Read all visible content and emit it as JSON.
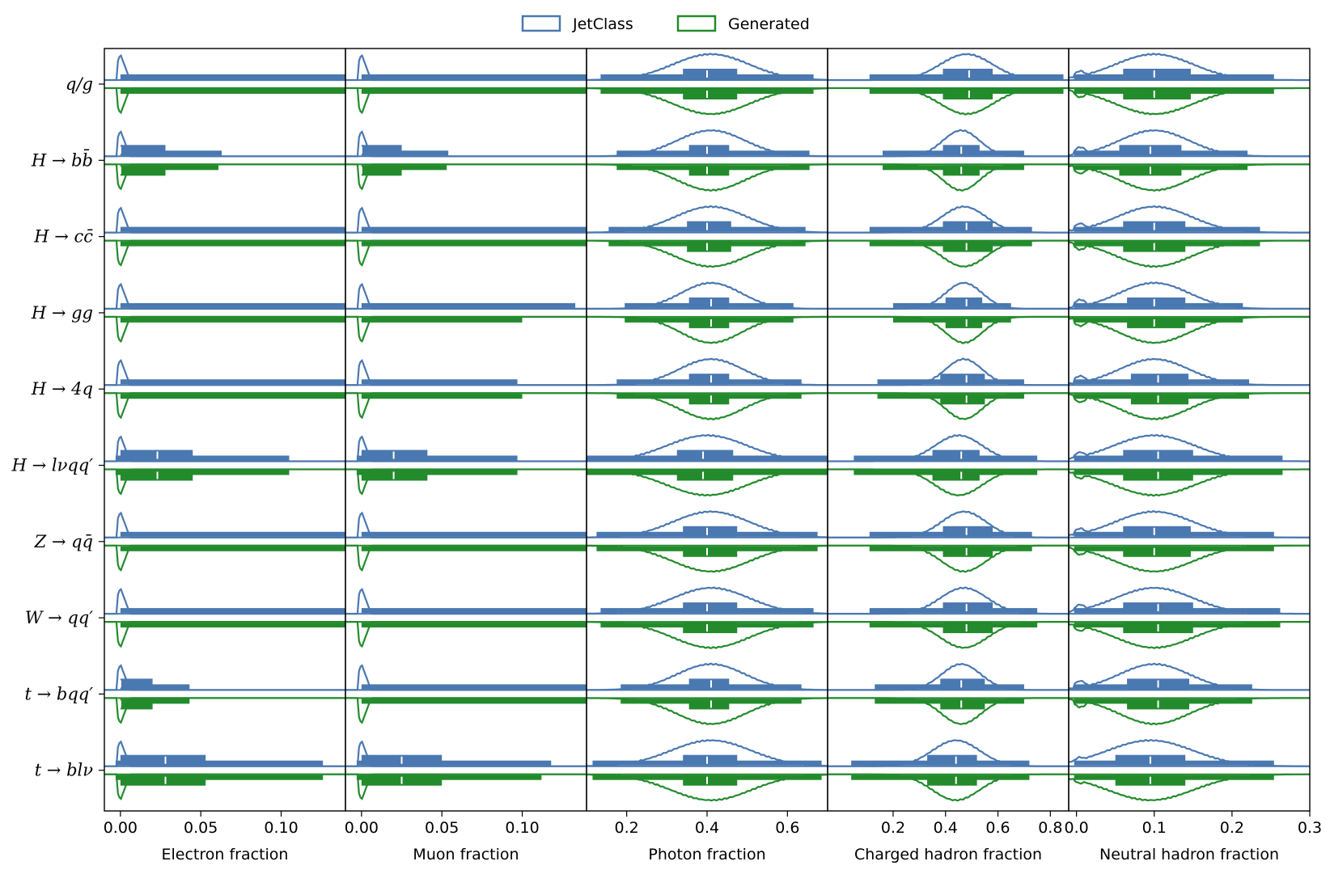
{
  "chart_data": {
    "type": "violin",
    "legend": {
      "placement": "top-center",
      "entries": [
        {
          "name": "JetClass",
          "color": "#4a78b0"
        },
        {
          "name": "Generated",
          "color": "#238b2c"
        }
      ]
    },
    "categories": [
      "q/g",
      "H → bb̄",
      "H → cc̄",
      "H → gg",
      "H → 4q",
      "H → lνqq′",
      "Z → qq̄",
      "W → qq′",
      "t → bqq′",
      "t → blν"
    ],
    "panels": [
      {
        "xlabel": "Electron fraction",
        "xlim": [
          -0.01,
          0.14
        ],
        "ticks": [
          0.0,
          0.05,
          0.1
        ],
        "tick_labels": [
          "0.00",
          "0.05",
          "0.10"
        ],
        "stats": [
          {
            "spike": 0.006,
            "med": 0.0,
            "q1": 0.0,
            "q3": 0.0,
            "lo": 0.0,
            "hi": 0.14,
            "hi_gen": 0.14
          },
          {
            "spike": 0.006,
            "med": 0.0,
            "q1": 0.0,
            "q3": 0.028,
            "lo": 0.0,
            "hi": 0.063,
            "hi_gen": 0.061
          },
          {
            "spike": 0.006,
            "med": 0.0,
            "q1": 0.0,
            "q3": 0.0,
            "lo": 0.0,
            "hi": 0.14,
            "hi_gen": 0.14
          },
          {
            "spike": 0.006,
            "med": 0.0,
            "q1": 0.0,
            "q3": 0.0,
            "lo": 0.0,
            "hi": 0.14,
            "hi_gen": 0.14
          },
          {
            "spike": 0.006,
            "med": 0.0,
            "q1": 0.0,
            "q3": 0.0,
            "lo": 0.0,
            "hi": 0.14,
            "hi_gen": 0.14
          },
          {
            "spike": 0.006,
            "med": 0.023,
            "q1": 0.0,
            "q3": 0.045,
            "lo": -0.003,
            "hi": 0.105,
            "hi_gen": 0.105
          },
          {
            "spike": 0.006,
            "med": 0.0,
            "q1": 0.0,
            "q3": 0.0,
            "lo": 0.0,
            "hi": 0.14,
            "hi_gen": 0.14
          },
          {
            "spike": 0.006,
            "med": 0.0,
            "q1": 0.0,
            "q3": 0.0,
            "lo": 0.0,
            "hi": 0.14,
            "hi_gen": 0.14
          },
          {
            "spike": 0.006,
            "med": 0.0,
            "q1": 0.0,
            "q3": 0.02,
            "lo": 0.0,
            "hi": 0.043,
            "hi_gen": 0.043
          },
          {
            "spike": 0.006,
            "med": 0.028,
            "q1": 0.0,
            "q3": 0.053,
            "lo": -0.003,
            "hi": 0.126,
            "hi_gen": 0.126
          }
        ]
      },
      {
        "xlabel": "Muon fraction",
        "xlim": [
          -0.01,
          0.14
        ],
        "ticks": [
          0.0,
          0.05,
          0.1
        ],
        "tick_labels": [
          "0.00",
          "0.05",
          "0.10"
        ],
        "stats": [
          {
            "spike": 0.006,
            "med": 0.0,
            "q1": 0.0,
            "q3": 0.0,
            "lo": 0.0,
            "hi": 0.14,
            "hi_gen": 0.14
          },
          {
            "spike": 0.006,
            "med": 0.0,
            "q1": 0.0,
            "q3": 0.025,
            "lo": 0.0,
            "hi": 0.054,
            "hi_gen": 0.053
          },
          {
            "spike": 0.006,
            "med": 0.0,
            "q1": 0.0,
            "q3": 0.0,
            "lo": 0.0,
            "hi": 0.14,
            "hi_gen": 0.14
          },
          {
            "spike": 0.006,
            "med": 0.0,
            "q1": 0.0,
            "q3": 0.0,
            "lo": 0.0,
            "hi": 0.133,
            "hi_gen": 0.1
          },
          {
            "spike": 0.006,
            "med": 0.0,
            "q1": 0.0,
            "q3": 0.0,
            "lo": 0.0,
            "hi": 0.097,
            "hi_gen": 0.1
          },
          {
            "spike": 0.006,
            "med": 0.02,
            "q1": 0.0,
            "q3": 0.041,
            "lo": -0.003,
            "hi": 0.097,
            "hi_gen": 0.097
          },
          {
            "spike": 0.006,
            "med": 0.0,
            "q1": 0.0,
            "q3": 0.0,
            "lo": 0.0,
            "hi": 0.14,
            "hi_gen": 0.14
          },
          {
            "spike": 0.006,
            "med": 0.0,
            "q1": 0.0,
            "q3": 0.0,
            "lo": 0.0,
            "hi": 0.14,
            "hi_gen": 0.14
          },
          {
            "spike": 0.006,
            "med": 0.0,
            "q1": 0.0,
            "q3": 0.0,
            "lo": 0.0,
            "hi": 0.14,
            "hi_gen": 0.14
          },
          {
            "spike": 0.006,
            "med": 0.025,
            "q1": 0.0,
            "q3": 0.05,
            "lo": -0.003,
            "hi": 0.118,
            "hi_gen": 0.112
          }
        ]
      },
      {
        "xlabel": "Photon fraction",
        "xlim": [
          0.1,
          0.7
        ],
        "ticks": [
          0.2,
          0.4,
          0.6
        ],
        "tick_labels": [
          "0.2",
          "0.4",
          "0.6"
        ],
        "stats": [
          {
            "peak": 0.41,
            "width": 0.095,
            "med": 0.4,
            "q1": 0.34,
            "q3": 0.475,
            "lo": 0.135,
            "hi": 0.665
          },
          {
            "peak": 0.41,
            "width": 0.085,
            "med": 0.4,
            "q1": 0.355,
            "q3": 0.455,
            "lo": 0.175,
            "hi": 0.655
          },
          {
            "peak": 0.41,
            "width": 0.09,
            "med": 0.4,
            "q1": 0.35,
            "q3": 0.46,
            "lo": 0.155,
            "hi": 0.645
          },
          {
            "peak": 0.41,
            "width": 0.075,
            "med": 0.41,
            "q1": 0.355,
            "q3": 0.455,
            "lo": 0.195,
            "hi": 0.615
          },
          {
            "peak": 0.41,
            "width": 0.08,
            "med": 0.41,
            "q1": 0.355,
            "q3": 0.455,
            "lo": 0.175,
            "hi": 0.635
          },
          {
            "peak": 0.4,
            "width": 0.1,
            "med": 0.39,
            "q1": 0.325,
            "q3": 0.465,
            "lo": 0.1,
            "hi": 0.7
          },
          {
            "peak": 0.41,
            "width": 0.095,
            "med": 0.4,
            "q1": 0.34,
            "q3": 0.475,
            "lo": 0.125,
            "hi": 0.675
          },
          {
            "peak": 0.41,
            "width": 0.095,
            "med": 0.4,
            "q1": 0.34,
            "q3": 0.475,
            "lo": 0.135,
            "hi": 0.665
          },
          {
            "peak": 0.41,
            "width": 0.085,
            "med": 0.41,
            "q1": 0.355,
            "q3": 0.455,
            "lo": 0.185,
            "hi": 0.635
          },
          {
            "peak": 0.41,
            "width": 0.1,
            "med": 0.4,
            "q1": 0.34,
            "q3": 0.475,
            "lo": 0.115,
            "hi": 0.685
          }
        ]
      },
      {
        "xlabel": "Charged hadron fraction",
        "xlim": [
          -0.05,
          0.87
        ],
        "ticks": [
          0.2,
          0.4,
          0.6,
          0.8
        ],
        "tick_labels": [
          "0.2",
          "0.4",
          "0.6",
          "0.8"
        ],
        "stats": [
          {
            "peak": 0.48,
            "width": 0.1,
            "med": 0.49,
            "q1": 0.39,
            "q3": 0.58,
            "lo": 0.11,
            "hi": 0.85
          },
          {
            "peak": 0.46,
            "width": 0.07,
            "med": 0.46,
            "q1": 0.39,
            "q3": 0.53,
            "lo": 0.16,
            "hi": 0.7
          },
          {
            "peak": 0.47,
            "width": 0.085,
            "med": 0.48,
            "q1": 0.39,
            "q3": 0.58,
            "lo": 0.11,
            "hi": 0.73
          },
          {
            "peak": 0.47,
            "width": 0.07,
            "med": 0.48,
            "q1": 0.4,
            "q3": 0.54,
            "lo": 0.2,
            "hi": 0.65
          },
          {
            "peak": 0.47,
            "width": 0.07,
            "med": 0.48,
            "q1": 0.38,
            "q3": 0.55,
            "lo": 0.14,
            "hi": 0.7
          },
          {
            "peak": 0.45,
            "width": 0.09,
            "med": 0.46,
            "q1": 0.35,
            "q3": 0.53,
            "lo": 0.05,
            "hi": 0.75
          },
          {
            "peak": 0.47,
            "width": 0.085,
            "med": 0.48,
            "q1": 0.39,
            "q3": 0.58,
            "lo": 0.11,
            "hi": 0.73
          },
          {
            "peak": 0.47,
            "width": 0.09,
            "med": 0.48,
            "q1": 0.39,
            "q3": 0.58,
            "lo": 0.11,
            "hi": 0.75
          },
          {
            "peak": 0.46,
            "width": 0.075,
            "med": 0.46,
            "q1": 0.38,
            "q3": 0.55,
            "lo": 0.13,
            "hi": 0.7
          },
          {
            "peak": 0.44,
            "width": 0.09,
            "med": 0.44,
            "q1": 0.33,
            "q3": 0.52,
            "lo": 0.04,
            "hi": 0.72
          }
        ]
      },
      {
        "xlabel": "Neutral hadron fraction",
        "xlim": [
          -0.01,
          0.3
        ],
        "ticks": [
          0.0,
          0.1,
          0.2,
          0.3
        ],
        "tick_labels": [
          "0.0",
          "0.1",
          "0.2",
          "0.3"
        ],
        "stats": [
          {
            "peak": 0.1,
            "width": 0.05,
            "med": 0.1,
            "q1": 0.06,
            "q3": 0.147,
            "lo": -0.003,
            "hi": 0.254
          },
          {
            "peak": 0.1,
            "width": 0.045,
            "med": 0.095,
            "q1": 0.055,
            "q3": 0.135,
            "lo": -0.003,
            "hi": 0.22
          },
          {
            "peak": 0.1,
            "width": 0.048,
            "med": 0.1,
            "q1": 0.06,
            "q3": 0.14,
            "lo": -0.003,
            "hi": 0.236
          },
          {
            "peak": 0.1,
            "width": 0.045,
            "med": 0.1,
            "q1": 0.065,
            "q3": 0.14,
            "lo": -0.003,
            "hi": 0.214
          },
          {
            "peak": 0.1,
            "width": 0.045,
            "med": 0.105,
            "q1": 0.07,
            "q3": 0.144,
            "lo": -0.003,
            "hi": 0.222
          },
          {
            "peak": 0.1,
            "width": 0.052,
            "med": 0.105,
            "q1": 0.06,
            "q3": 0.15,
            "lo": -0.003,
            "hi": 0.265
          },
          {
            "peak": 0.1,
            "width": 0.05,
            "med": 0.1,
            "q1": 0.06,
            "q3": 0.147,
            "lo": -0.003,
            "hi": 0.254
          },
          {
            "peak": 0.1,
            "width": 0.05,
            "med": 0.105,
            "q1": 0.06,
            "q3": 0.15,
            "lo": -0.003,
            "hi": 0.262
          },
          {
            "peak": 0.1,
            "width": 0.045,
            "med": 0.105,
            "q1": 0.065,
            "q3": 0.145,
            "lo": -0.003,
            "hi": 0.226
          },
          {
            "peak": 0.095,
            "width": 0.055,
            "med": 0.095,
            "q1": 0.05,
            "q3": 0.14,
            "lo": -0.003,
            "hi": 0.254
          }
        ]
      }
    ]
  }
}
